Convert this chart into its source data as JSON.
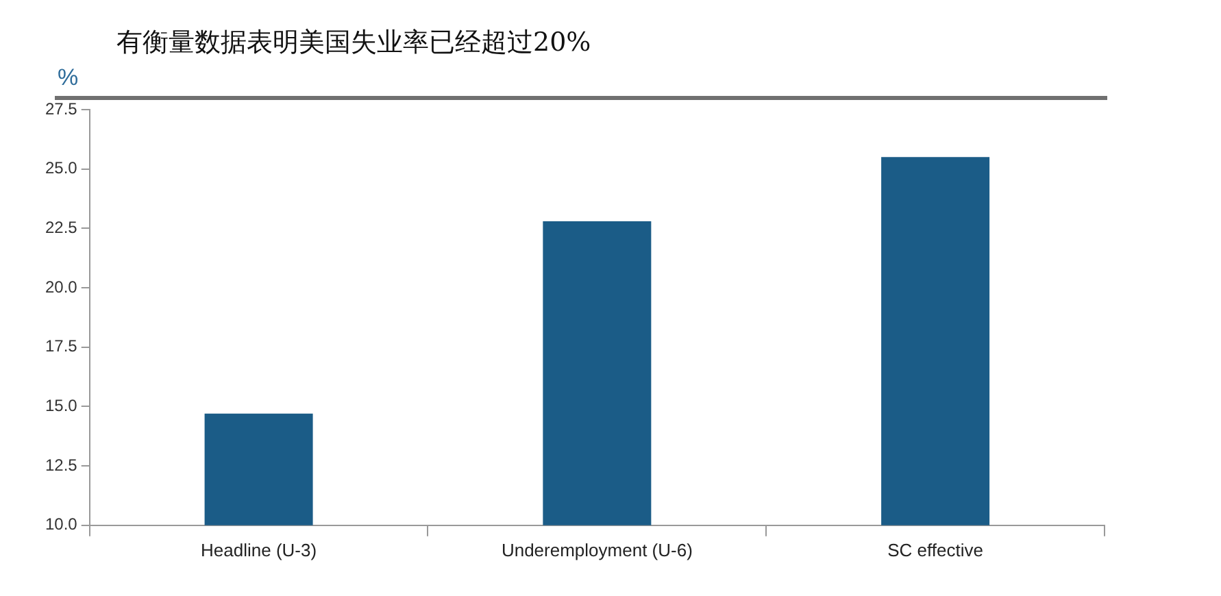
{
  "chart_data": {
    "type": "bar",
    "title": "有衡量数据表明美国失业率已经超过20%",
    "ylabel": "%",
    "categories": [
      "Headline (U-3)",
      "Underemployment (U-6)",
      "SC effective"
    ],
    "values": [
      14.7,
      22.8,
      25.5
    ],
    "color": "#1b5c87",
    "ylim": [
      10,
      27.5
    ],
    "yticks": [
      {
        "value": 10,
        "label": "10.0"
      },
      {
        "value": 12.5,
        "label": "12.5"
      },
      {
        "value": 15,
        "label": "15.0"
      },
      {
        "value": 17.5,
        "label": "17.5"
      },
      {
        "value": 20,
        "label": "20.0"
      },
      {
        "value": 22.5,
        "label": "22.5"
      },
      {
        "value": 25,
        "label": "25.0"
      },
      {
        "value": 27.5,
        "label": "27.5"
      }
    ],
    "grid": false,
    "legend": false
  }
}
